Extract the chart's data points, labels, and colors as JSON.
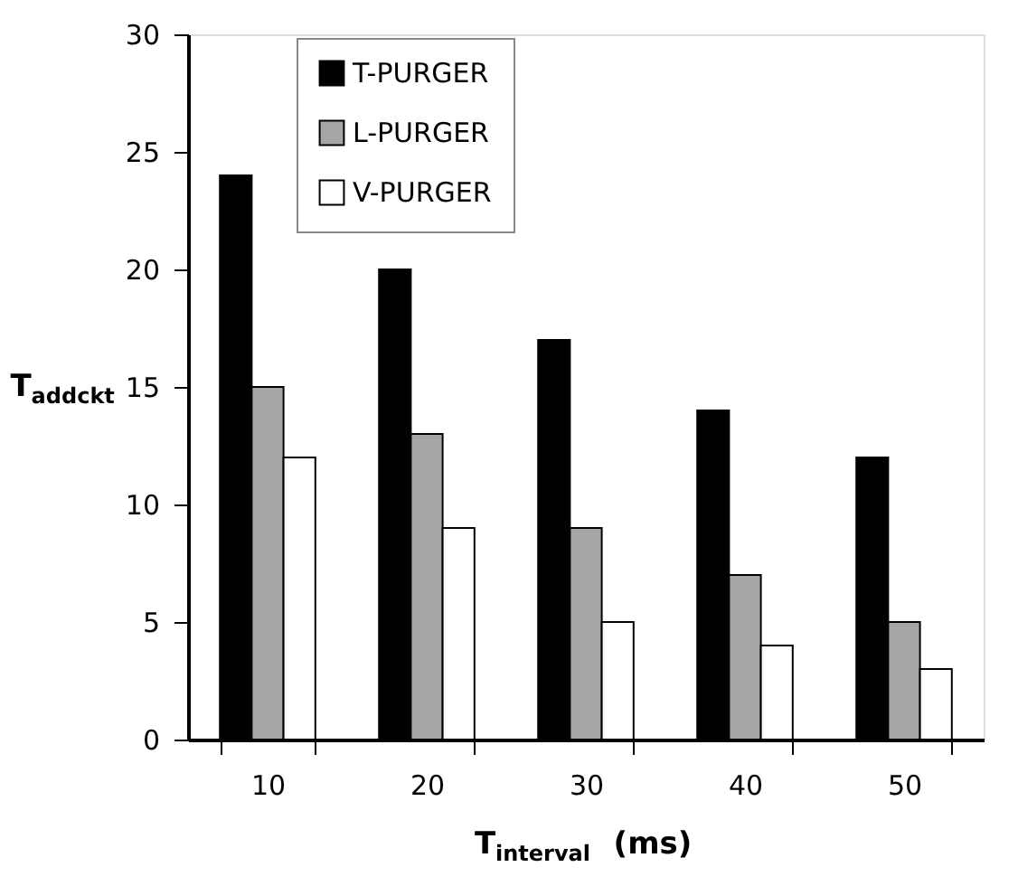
{
  "chart_data": {
    "type": "bar",
    "xlabel": "T$_{interval}$(ms)",
    "ylabel": "T$_{addckt}$",
    "categories": [
      "10",
      "20",
      "30",
      "40",
      "50"
    ],
    "series": [
      {
        "name": "T-PURGER",
        "color": "#000000",
        "values": [
          24,
          20,
          17,
          14,
          12
        ]
      },
      {
        "name": "L-PURGER",
        "color": "#a6a6a6",
        "values": [
          15,
          13,
          9,
          7,
          5
        ]
      },
      {
        "name": "V-PURGER",
        "color": "#ffffff",
        "values": [
          12,
          9,
          5,
          4,
          3
        ]
      }
    ],
    "ylim": [
      0,
      30
    ],
    "yticks": [
      0,
      5,
      10,
      15,
      20,
      25,
      30
    ],
    "grid": false,
    "legend": "top left"
  }
}
